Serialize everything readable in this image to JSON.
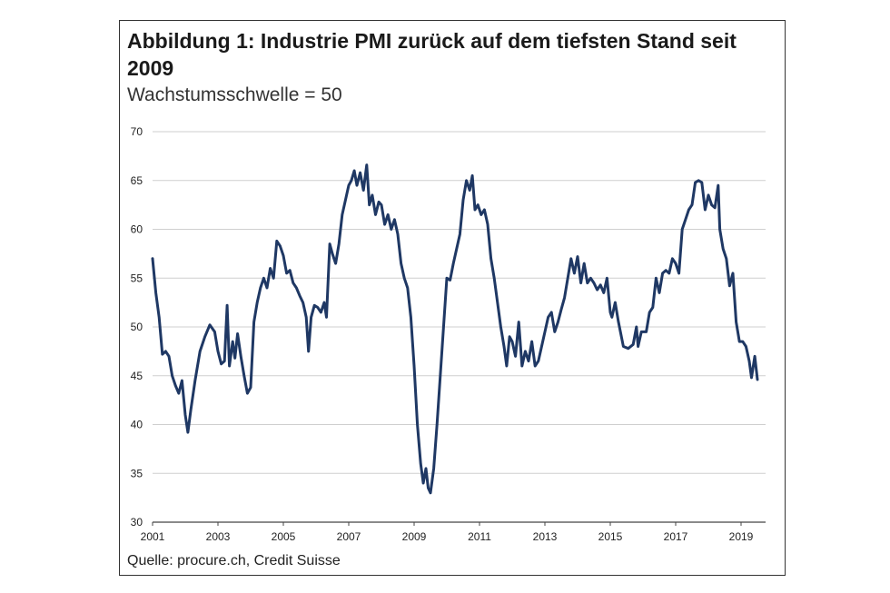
{
  "chart_data": {
    "type": "line",
    "title": "Abbildung 1: Industrie PMI zurück auf dem tiefsten Stand seit 2009",
    "subtitle": "Wachstumsschwelle = 50",
    "source": "Quelle: procure.ch, Credit Suisse",
    "xlabel": "",
    "ylabel": "",
    "ylim": [
      30,
      70
    ],
    "xlim": [
      2001,
      2019.75
    ],
    "y_ticks": [
      "30",
      "35",
      "40",
      "45",
      "50",
      "55",
      "60",
      "65",
      "70"
    ],
    "x_ticks": [
      "2001",
      "2003",
      "2005",
      "2007",
      "2009",
      "2011",
      "2013",
      "2015",
      "2017",
      "2019"
    ],
    "grid": true,
    "legend": "none",
    "series": [
      {
        "name": "Industrie PMI",
        "color": "#1f3864",
        "points": [
          [
            2001.0,
            57.0
          ],
          [
            2001.1,
            53.5
          ],
          [
            2001.2,
            51.0
          ],
          [
            2001.3,
            47.2
          ],
          [
            2001.4,
            47.5
          ],
          [
            2001.5,
            47.0
          ],
          [
            2001.6,
            45.0
          ],
          [
            2001.7,
            44.0
          ],
          [
            2001.8,
            43.2
          ],
          [
            2001.9,
            44.5
          ],
          [
            2002.0,
            41.0
          ],
          [
            2002.08,
            39.2
          ],
          [
            2002.17,
            41.5
          ],
          [
            2002.3,
            44.5
          ],
          [
            2002.45,
            47.5
          ],
          [
            2002.6,
            49.0
          ],
          [
            2002.75,
            50.2
          ],
          [
            2002.9,
            49.5
          ],
          [
            2003.0,
            47.5
          ],
          [
            2003.1,
            46.2
          ],
          [
            2003.2,
            46.5
          ],
          [
            2003.28,
            52.2
          ],
          [
            2003.35,
            46.0
          ],
          [
            2003.45,
            48.5
          ],
          [
            2003.52,
            46.8
          ],
          [
            2003.6,
            49.3
          ],
          [
            2003.7,
            47.0
          ],
          [
            2003.8,
            45.0
          ],
          [
            2003.9,
            43.2
          ],
          [
            2004.0,
            43.8
          ],
          [
            2004.1,
            50.5
          ],
          [
            2004.2,
            52.5
          ],
          [
            2004.3,
            54.0
          ],
          [
            2004.4,
            55.0
          ],
          [
            2004.5,
            54.0
          ],
          [
            2004.6,
            56.0
          ],
          [
            2004.7,
            55.0
          ],
          [
            2004.8,
            58.8
          ],
          [
            2004.9,
            58.3
          ],
          [
            2005.0,
            57.3
          ],
          [
            2005.1,
            55.5
          ],
          [
            2005.2,
            55.8
          ],
          [
            2005.3,
            54.5
          ],
          [
            2005.4,
            54.0
          ],
          [
            2005.5,
            53.2
          ],
          [
            2005.6,
            52.5
          ],
          [
            2005.7,
            51.0
          ],
          [
            2005.77,
            47.5
          ],
          [
            2005.85,
            51.0
          ],
          [
            2005.95,
            52.2
          ],
          [
            2006.05,
            52.0
          ],
          [
            2006.15,
            51.5
          ],
          [
            2006.25,
            52.5
          ],
          [
            2006.32,
            51.0
          ],
          [
            2006.42,
            58.5
          ],
          [
            2006.5,
            57.5
          ],
          [
            2006.6,
            56.5
          ],
          [
            2006.7,
            58.5
          ],
          [
            2006.8,
            61.5
          ],
          [
            2006.9,
            63.0
          ],
          [
            2007.0,
            64.5
          ],
          [
            2007.08,
            65.0
          ],
          [
            2007.17,
            66.0
          ],
          [
            2007.25,
            64.5
          ],
          [
            2007.35,
            65.8
          ],
          [
            2007.45,
            64.0
          ],
          [
            2007.55,
            66.6
          ],
          [
            2007.63,
            62.5
          ],
          [
            2007.72,
            63.5
          ],
          [
            2007.82,
            61.5
          ],
          [
            2007.92,
            62.8
          ],
          [
            2008.0,
            62.5
          ],
          [
            2008.1,
            60.5
          ],
          [
            2008.2,
            61.5
          ],
          [
            2008.3,
            60.0
          ],
          [
            2008.4,
            61.0
          ],
          [
            2008.5,
            59.5
          ],
          [
            2008.6,
            56.5
          ],
          [
            2008.7,
            55.0
          ],
          [
            2008.8,
            54.0
          ],
          [
            2008.9,
            51.0
          ],
          [
            2009.0,
            46.0
          ],
          [
            2009.1,
            40.0
          ],
          [
            2009.2,
            36.0
          ],
          [
            2009.28,
            34.0
          ],
          [
            2009.36,
            35.5
          ],
          [
            2009.43,
            33.5
          ],
          [
            2009.5,
            33.0
          ],
          [
            2009.6,
            35.5
          ],
          [
            2009.7,
            40.0
          ],
          [
            2009.8,
            45.0
          ],
          [
            2009.9,
            50.0
          ],
          [
            2010.0,
            55.0
          ],
          [
            2010.1,
            54.8
          ],
          [
            2010.2,
            56.5
          ],
          [
            2010.3,
            58.0
          ],
          [
            2010.4,
            59.5
          ],
          [
            2010.5,
            63.0
          ],
          [
            2010.6,
            65.0
          ],
          [
            2010.7,
            64.0
          ],
          [
            2010.78,
            65.5
          ],
          [
            2010.86,
            62.0
          ],
          [
            2010.95,
            62.5
          ],
          [
            2011.05,
            61.5
          ],
          [
            2011.15,
            62.0
          ],
          [
            2011.25,
            60.5
          ],
          [
            2011.35,
            57.0
          ],
          [
            2011.45,
            55.0
          ],
          [
            2011.55,
            52.5
          ],
          [
            2011.65,
            50.0
          ],
          [
            2011.75,
            48.0
          ],
          [
            2011.83,
            46.0
          ],
          [
            2011.92,
            49.0
          ],
          [
            2012.0,
            48.5
          ],
          [
            2012.1,
            47.0
          ],
          [
            2012.2,
            50.5
          ],
          [
            2012.3,
            46.0
          ],
          [
            2012.4,
            47.5
          ],
          [
            2012.5,
            46.5
          ],
          [
            2012.6,
            48.5
          ],
          [
            2012.7,
            46.0
          ],
          [
            2012.8,
            46.5
          ],
          [
            2012.9,
            48.0
          ],
          [
            2013.0,
            49.5
          ],
          [
            2013.1,
            51.0
          ],
          [
            2013.2,
            51.5
          ],
          [
            2013.3,
            49.5
          ],
          [
            2013.4,
            50.5
          ],
          [
            2013.5,
            51.8
          ],
          [
            2013.6,
            53.0
          ],
          [
            2013.7,
            55.0
          ],
          [
            2013.8,
            57.0
          ],
          [
            2013.9,
            55.5
          ],
          [
            2014.0,
            57.2
          ],
          [
            2014.1,
            54.5
          ],
          [
            2014.2,
            56.5
          ],
          [
            2014.3,
            54.5
          ],
          [
            2014.4,
            55.0
          ],
          [
            2014.5,
            54.5
          ],
          [
            2014.6,
            53.8
          ],
          [
            2014.7,
            54.3
          ],
          [
            2014.8,
            53.5
          ],
          [
            2014.9,
            55.0
          ],
          [
            2015.0,
            51.5
          ],
          [
            2015.05,
            51.0
          ],
          [
            2015.15,
            52.5
          ],
          [
            2015.25,
            50.5
          ],
          [
            2015.4,
            48.0
          ],
          [
            2015.55,
            47.8
          ],
          [
            2015.7,
            48.2
          ],
          [
            2015.8,
            50.0
          ],
          [
            2015.85,
            48.0
          ],
          [
            2015.95,
            49.5
          ],
          [
            2016.1,
            49.5
          ],
          [
            2016.2,
            51.5
          ],
          [
            2016.3,
            52.0
          ],
          [
            2016.4,
            55.0
          ],
          [
            2016.5,
            53.5
          ],
          [
            2016.6,
            55.5
          ],
          [
            2016.7,
            55.8
          ],
          [
            2016.8,
            55.5
          ],
          [
            2016.9,
            57.0
          ],
          [
            2017.0,
            56.5
          ],
          [
            2017.1,
            55.5
          ],
          [
            2017.2,
            60.0
          ],
          [
            2017.3,
            61.0
          ],
          [
            2017.4,
            62.0
          ],
          [
            2017.5,
            62.5
          ],
          [
            2017.6,
            64.8
          ],
          [
            2017.7,
            65.0
          ],
          [
            2017.8,
            64.8
          ],
          [
            2017.9,
            62.0
          ],
          [
            2018.0,
            63.5
          ],
          [
            2018.1,
            62.5
          ],
          [
            2018.2,
            62.2
          ],
          [
            2018.3,
            64.5
          ],
          [
            2018.35,
            60.0
          ],
          [
            2018.45,
            58.0
          ],
          [
            2018.55,
            57.0
          ],
          [
            2018.65,
            54.2
          ],
          [
            2018.75,
            55.5
          ],
          [
            2018.85,
            50.5
          ],
          [
            2018.95,
            48.5
          ],
          [
            2019.05,
            48.5
          ],
          [
            2019.15,
            48.0
          ],
          [
            2019.25,
            46.5
          ],
          [
            2019.32,
            44.8
          ],
          [
            2019.42,
            47.0
          ],
          [
            2019.5,
            44.6
          ]
        ]
      }
    ]
  }
}
